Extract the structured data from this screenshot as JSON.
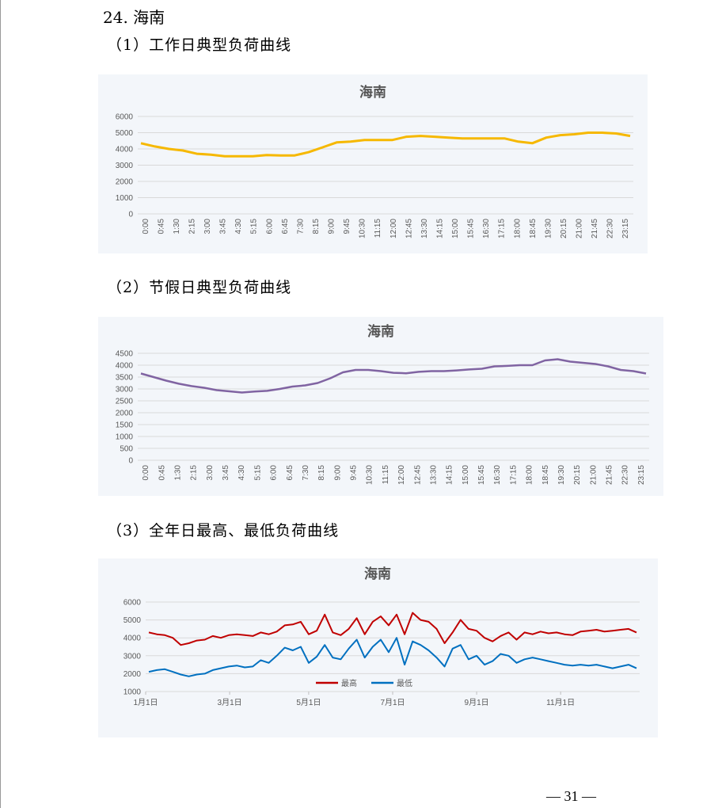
{
  "section_heading": "24.  海南",
  "subsections": [
    {
      "label": "（1）工作日典型负荷曲线"
    },
    {
      "label": "（2）节假日典型负荷曲线"
    },
    {
      "label": "（3）全年日最高、最低负荷曲线"
    }
  ],
  "page_number": "— 31 —",
  "chart_data": [
    {
      "type": "line",
      "title": "海南",
      "color": "#f6b800",
      "x_tick_labels": [
        "0:00",
        "0:45",
        "1:30",
        "2:15",
        "3:00",
        "3:45",
        "4:30",
        "5:15",
        "6:00",
        "6:45",
        "7:30",
        "8:15",
        "9:00",
        "9:45",
        "10:30",
        "11:15",
        "12:00",
        "12:45",
        "13:30",
        "14:15",
        "15:00",
        "15:45",
        "16:30",
        "17:15",
        "18:00",
        "18:45",
        "19:30",
        "20:15",
        "21:00",
        "21:45",
        "22:30",
        "23:15"
      ],
      "y_tick_labels": [
        "0",
        "1000",
        "2000",
        "3000",
        "4000",
        "5000",
        "6000"
      ],
      "ylim": [
        0,
        6000
      ],
      "values": [
        4350,
        4150,
        4000,
        3900,
        3700,
        3650,
        3550,
        3550,
        3550,
        3620,
        3600,
        3600,
        3800,
        4100,
        4400,
        4450,
        4550,
        4550,
        4550,
        4750,
        4800,
        4750,
        4700,
        4650,
        4650,
        4650,
        4650,
        4450,
        4350,
        4700,
        4850,
        4900,
        5000,
        5000,
        4950,
        4800
      ]
    },
    {
      "type": "line",
      "title": "海南",
      "color": "#8064a2",
      "x_tick_labels": [
        "0:00",
        "0:45",
        "1:30",
        "2:15",
        "3:00",
        "3:45",
        "4:30",
        "5:15",
        "6:00",
        "6:45",
        "7:30",
        "8:15",
        "9:00",
        "9:45",
        "10:30",
        "11:15",
        "12:00",
        "12:45",
        "13:30",
        "14:15",
        "15:00",
        "15:45",
        "16:30",
        "17:15",
        "18:00",
        "18:45",
        "19:30",
        "20:15",
        "21:00",
        "21:45",
        "22:30",
        "23:15"
      ],
      "y_tick_labels": [
        "0",
        "500",
        "1000",
        "1500",
        "2000",
        "2500",
        "3000",
        "3500",
        "4000",
        "4500"
      ],
      "ylim": [
        0,
        4500
      ],
      "values": [
        3650,
        3500,
        3350,
        3220,
        3120,
        3050,
        2950,
        2900,
        2850,
        2890,
        2920,
        3000,
        3100,
        3150,
        3250,
        3450,
        3700,
        3800,
        3800,
        3750,
        3680,
        3660,
        3720,
        3750,
        3750,
        3780,
        3820,
        3850,
        3950,
        3970,
        4000,
        4000,
        4200,
        4250,
        4150,
        4100,
        4050,
        3950,
        3800,
        3750,
        3650
      ]
    },
    {
      "type": "line",
      "title": "海南",
      "x_tick_labels": [
        "1月1日",
        "3月1日",
        "5月1日",
        "7月1日",
        "9月1日",
        "11月1日"
      ],
      "y_tick_labels": [
        "1000",
        "2000",
        "3000",
        "4000",
        "5000",
        "6000"
      ],
      "ylim": [
        1000,
        6000
      ],
      "series": [
        {
          "name": "最高",
          "color": "#c00000",
          "values": [
            4300,
            4200,
            4150,
            4000,
            3600,
            3700,
            3850,
            3900,
            4100,
            4000,
            4150,
            4200,
            4150,
            4100,
            4300,
            4200,
            4350,
            4700,
            4750,
            4900,
            4200,
            4400,
            5300,
            4300,
            4150,
            4500,
            5100,
            4200,
            4900,
            5200,
            4700,
            5300,
            4200,
            5400,
            5000,
            4900,
            4500,
            3700,
            4300,
            5000,
            4500,
            4400,
            4000,
            3800,
            4100,
            4300,
            3900,
            4300,
            4200,
            4350,
            4250,
            4300,
            4200,
            4150,
            4350,
            4400,
            4450,
            4350,
            4400,
            4450,
            4500,
            4300
          ]
        },
        {
          "name": "最低",
          "color": "#0070c0",
          "values": [
            2100,
            2200,
            2250,
            2100,
            1950,
            1850,
            1950,
            2000,
            2200,
            2300,
            2400,
            2450,
            2350,
            2400,
            2750,
            2600,
            3000,
            3450,
            3300,
            3500,
            2600,
            2950,
            3600,
            2900,
            2800,
            3400,
            3900,
            2900,
            3500,
            3900,
            3200,
            4000,
            2500,
            3800,
            3600,
            3300,
            2900,
            2400,
            3400,
            3600,
            2800,
            3000,
            2500,
            2700,
            3100,
            3000,
            2600,
            2800,
            2900,
            2800,
            2700,
            2600,
            2500,
            2450,
            2500,
            2450,
            2500,
            2400,
            2300,
            2400,
            2500,
            2300
          ]
        }
      ]
    }
  ]
}
